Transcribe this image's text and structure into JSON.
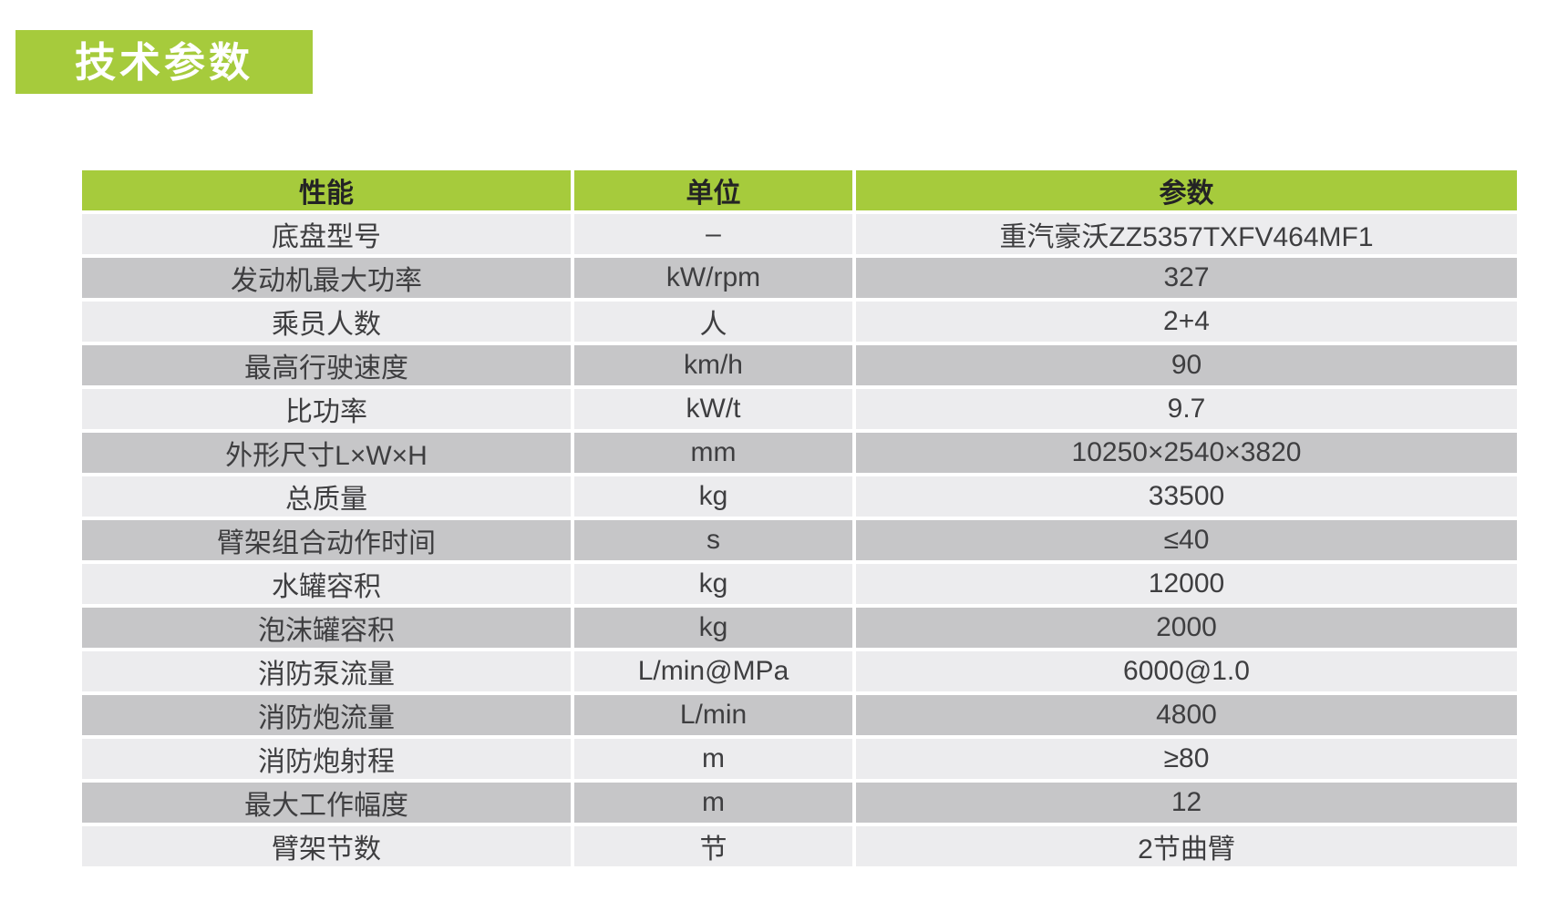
{
  "page": {
    "banner_title": "技术参数"
  },
  "colors": {
    "accent_green": "#a6cb3c",
    "row_light": "#ececee",
    "row_dark": "#c6c6c8",
    "header_text": "#232325",
    "cell_text": "#3e3e40"
  },
  "table": {
    "columns": [
      "性能",
      "单位",
      "参数"
    ],
    "rows": [
      {
        "name": "底盘型号",
        "unit": "–",
        "value": "重汽豪沃ZZ5357TXFV464MF1"
      },
      {
        "name": "发动机最大功率",
        "unit": "kW/rpm",
        "value": "327"
      },
      {
        "name": "乘员人数",
        "unit": "人",
        "value": "2+4"
      },
      {
        "name": "最高行驶速度",
        "unit": "km/h",
        "value": "90"
      },
      {
        "name": "比功率",
        "unit": "kW/t",
        "value": "9.7"
      },
      {
        "name": "外形尺寸L×W×H",
        "unit": "mm",
        "value": "10250×2540×3820"
      },
      {
        "name": "总质量",
        "unit": "kg",
        "value": "33500"
      },
      {
        "name": "臂架组合动作时间",
        "unit": "s",
        "value": "≤40"
      },
      {
        "name": "水罐容积",
        "unit": "kg",
        "value": "12000"
      },
      {
        "name": "泡沫罐容积",
        "unit": "kg",
        "value": "2000"
      },
      {
        "name": "消防泵流量",
        "unit": "L/min@MPa",
        "value": "6000@1.0"
      },
      {
        "name": "消防炮流量",
        "unit": "L/min",
        "value": "4800"
      },
      {
        "name": "消防炮射程",
        "unit": "m",
        "value": "≥80"
      },
      {
        "name": "最大工作幅度",
        "unit": "m",
        "value": "12"
      },
      {
        "name": "臂架节数",
        "unit": "节",
        "value": "2节曲臂"
      }
    ]
  }
}
